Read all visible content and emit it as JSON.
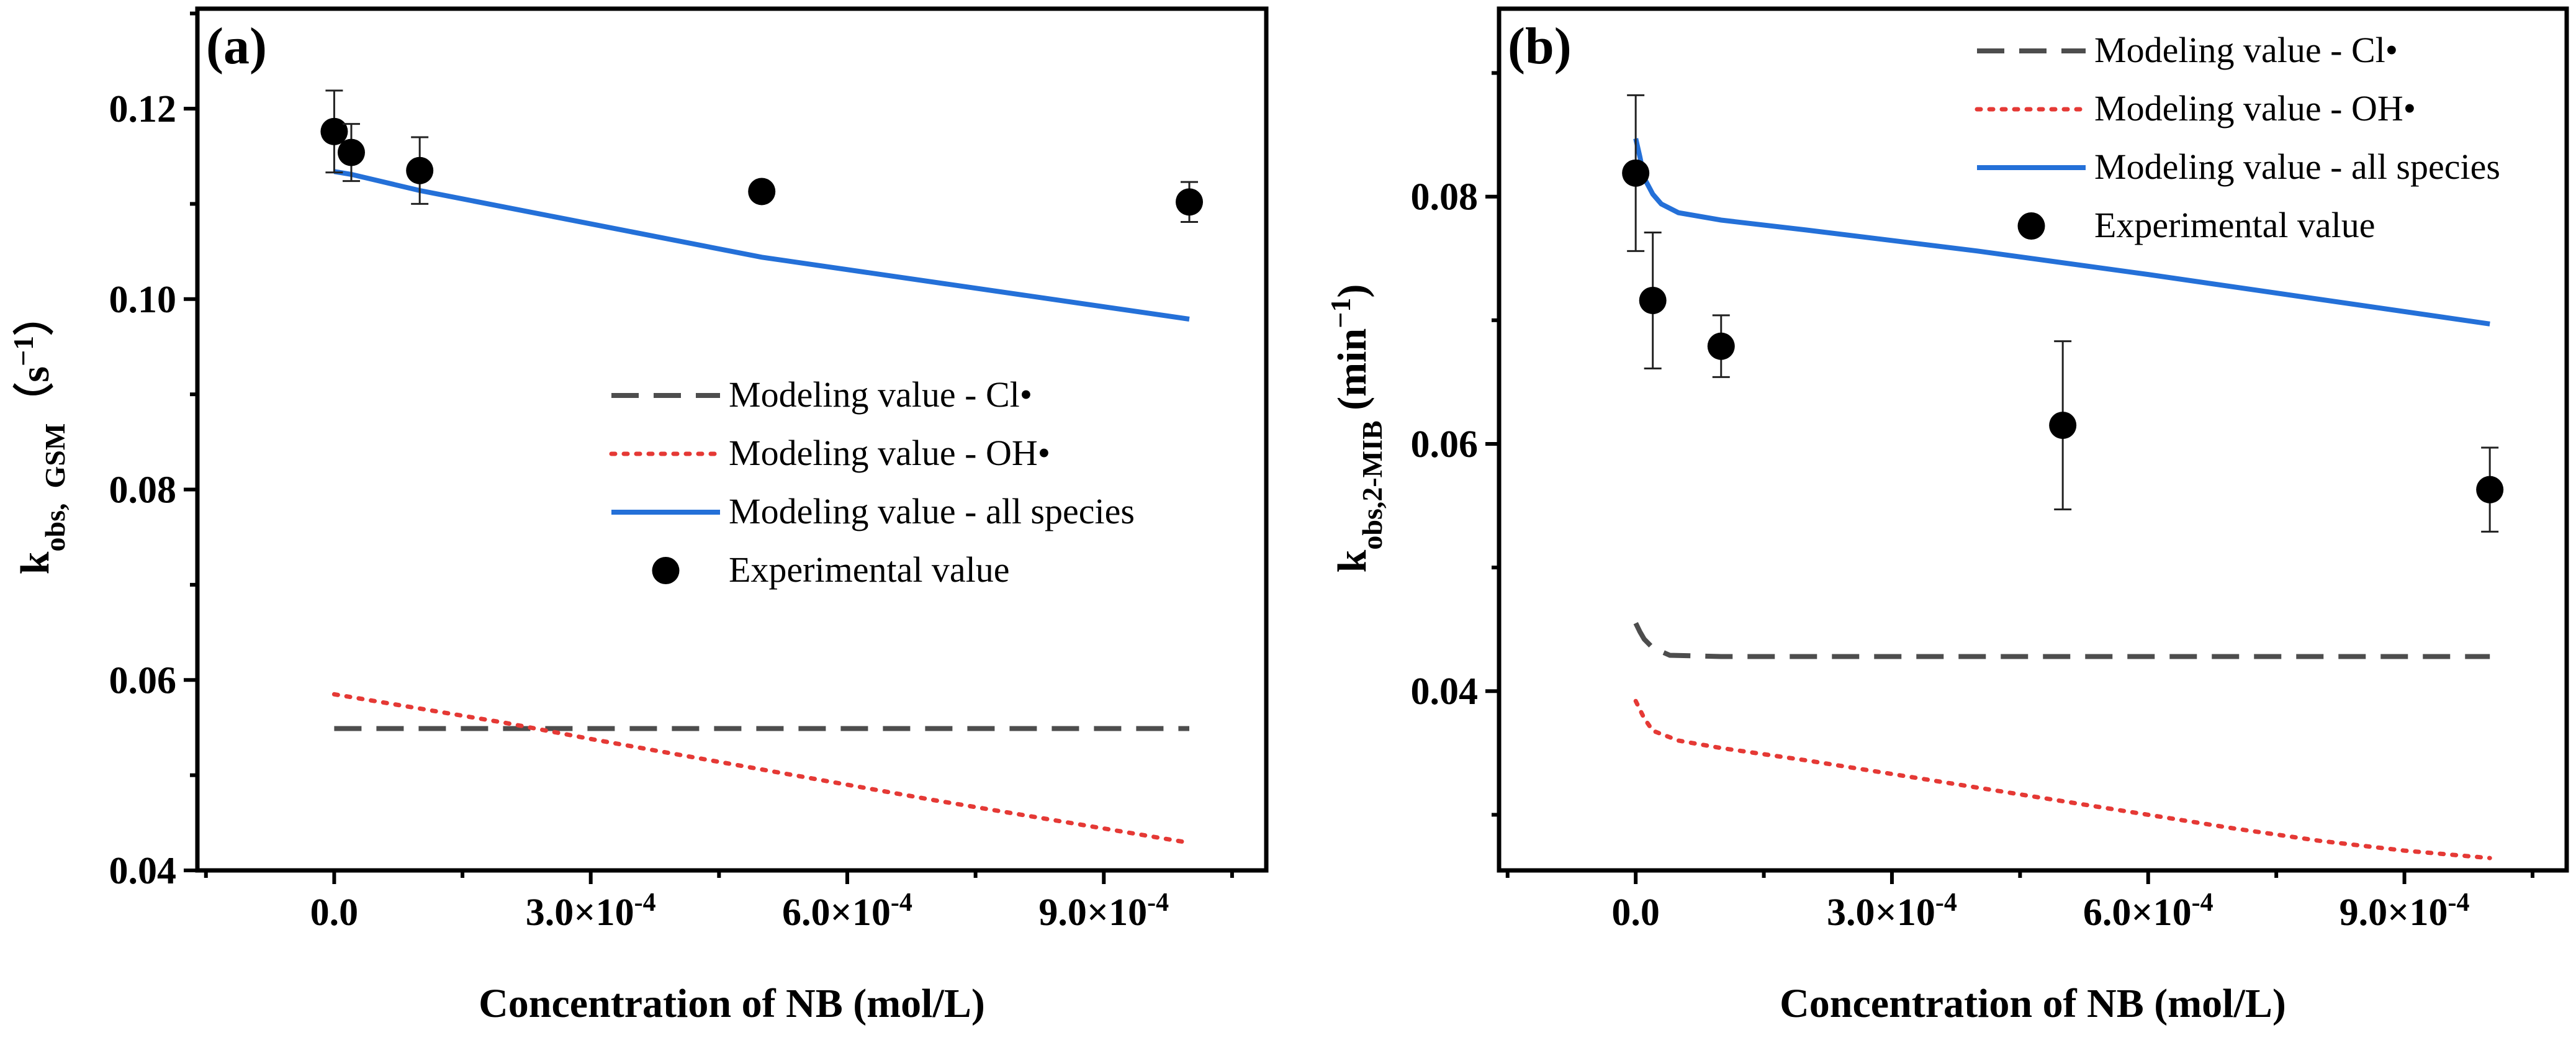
{
  "chart_data": [
    {
      "type": "line",
      "panel_label": "(a)",
      "xlabel": "Concentration of NB (mol/L)",
      "ylabel_parts": [
        "k",
        "obs,",
        "GSM",
        "（s",
        "−1",
        "）"
      ],
      "xlim": [
        -0.00016,
        0.00109
      ],
      "ylim": [
        0.04,
        0.1305
      ],
      "x_ticks": [
        0,
        0.0003,
        0.0006,
        0.0009
      ],
      "x_tick_labels": [
        "0.0",
        "3.0×10",
        "6.0×10",
        "9.0×10"
      ],
      "x_tick_exponents": [
        "",
        "-4",
        "-4",
        "-4"
      ],
      "y_ticks": [
        0.04,
        0.06,
        0.08,
        0.1,
        0.12
      ],
      "y_tick_labels": [
        "0.04",
        "0.06",
        "0.08",
        "0.10",
        "0.12"
      ],
      "legend_position": "center-right",
      "series": [
        {
          "name": "Modeling value - Cl•",
          "style": "dashed",
          "color": "#4d4d4d",
          "x": [
            0,
            1e-05,
            0.0001,
            0.0005,
            0.001
          ],
          "y": [
            0.0549,
            0.0549,
            0.0549,
            0.0549,
            0.0549
          ]
        },
        {
          "name": "Modeling value - OH•",
          "style": "dotted",
          "color": "#e53935",
          "x": [
            0,
            2e-05,
            0.0001,
            0.0002,
            0.0003,
            0.0004,
            0.0005,
            0.0006,
            0.0007,
            0.0008,
            0.0009,
            0.001
          ],
          "y": [
            0.0585,
            0.0582,
            0.057,
            0.0555,
            0.0538,
            0.0522,
            0.0506,
            0.049,
            0.0474,
            0.0459,
            0.0444,
            0.0429
          ]
        },
        {
          "name": "Modeling value - all species",
          "style": "solid",
          "color": "#2470d8",
          "x": [
            0,
            2e-05,
            0.0001,
            0.0005,
            0.001
          ],
          "y": [
            0.1134,
            0.1131,
            0.1114,
            0.1044,
            0.0979
          ]
        },
        {
          "name": "Experimental value",
          "style": "marker",
          "color": "#000000",
          "x": [
            0,
            2e-05,
            0.0001,
            0.0005,
            0.001
          ],
          "y": [
            0.1176,
            0.1154,
            0.1135,
            0.1113,
            0.1102
          ],
          "err": [
            0.0043,
            0.003,
            0.0035,
            0.0,
            0.0021
          ]
        }
      ]
    },
    {
      "type": "line",
      "panel_label": "(b)",
      "xlabel": "Concentration of NB (mol/L)",
      "ylabel_parts": [
        "k",
        "obs,2-MIB",
        " (min",
        "−1",
        ")"
      ],
      "xlim": [
        -0.00016,
        0.00109
      ],
      "ylim": [
        0.0255,
        0.0952
      ],
      "x_ticks": [
        0,
        0.0003,
        0.0006,
        0.0009
      ],
      "x_tick_labels": [
        "0.0",
        "3.0×10",
        "6.0×10",
        "9.0×10"
      ],
      "x_tick_exponents": [
        "",
        "-4",
        "-4",
        "-4"
      ],
      "y_ticks": [
        0.04,
        0.06,
        0.08
      ],
      "y_tick_labels": [
        "0.04",
        "0.06",
        "0.08"
      ],
      "legend_position": "top-right",
      "series": [
        {
          "name": "Modeling value - Cl•",
          "style": "dashed",
          "color": "#4d4d4d",
          "x": [
            0,
            5e-06,
            1e-05,
            2e-05,
            4e-05,
            0.0001,
            0.0005,
            0.001
          ],
          "y": [
            0.0455,
            0.0448,
            0.0442,
            0.0435,
            0.0429,
            0.0428,
            0.0428,
            0.0428
          ]
        },
        {
          "name": "Modeling value - OH•",
          "style": "dotted",
          "color": "#e53935",
          "x": [
            0,
            1e-05,
            2e-05,
            5e-05,
            0.0001,
            0.0002,
            0.0003,
            0.0004,
            0.0005,
            0.0006,
            0.0007,
            0.0008,
            0.0009,
            0.001
          ],
          "y": [
            0.0392,
            0.0378,
            0.0368,
            0.036,
            0.0354,
            0.0344,
            0.0333,
            0.0322,
            0.0311,
            0.03,
            0.0289,
            0.0279,
            0.0271,
            0.0265
          ]
        },
        {
          "name": "Modeling value - all species",
          "style": "solid",
          "color": "#2470d8",
          "x": [
            0,
            5e-06,
            1e-05,
            2e-05,
            3e-05,
            5e-05,
            0.0001,
            0.0002,
            0.0004,
            0.0006,
            0.0008,
            0.001
          ],
          "y": [
            0.0847,
            0.0832,
            0.0815,
            0.0802,
            0.0794,
            0.0787,
            0.0781,
            0.0773,
            0.0756,
            0.0737,
            0.0717,
            0.0697
          ]
        },
        {
          "name": "Experimental value",
          "style": "marker",
          "color": "#000000",
          "x": [
            0,
            2e-05,
            0.0001,
            0.0005,
            0.001
          ],
          "y": [
            0.0819,
            0.0716,
            0.0679,
            0.0615,
            0.0563
          ],
          "err": [
            0.0063,
            0.0055,
            0.0025,
            0.0068,
            0.0034
          ]
        }
      ]
    }
  ]
}
